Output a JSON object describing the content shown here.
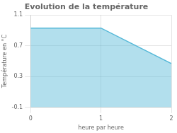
{
  "chart_data": {
    "type": "area",
    "title": "Evolution de la température",
    "xlabel": "heure par heure",
    "ylabel": "Température en °C",
    "x": [
      0,
      1,
      2
    ],
    "values": [
      0.93,
      0.93,
      0.47
    ],
    "color": "#55b8d8",
    "xlim": [
      0,
      2
    ],
    "xticks": [
      0,
      1,
      2
    ],
    "ylim": [
      -0.1,
      1.1
    ],
    "yticks": [
      -0.1,
      0.3,
      0.7,
      1.1
    ],
    "grid": true
  }
}
